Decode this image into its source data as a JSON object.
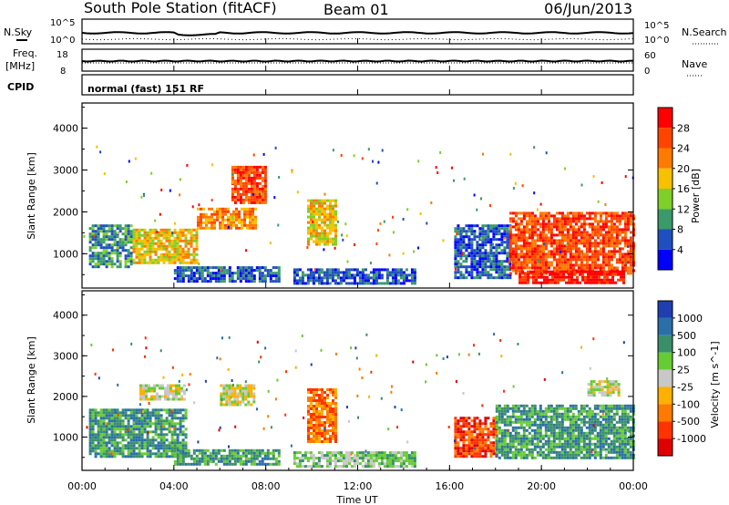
{
  "header": {
    "station": "South Pole Station (fitACF)",
    "beam": "Beam 01",
    "date": "06/Jun/2013"
  },
  "noise_panel": {
    "left_label": "N.Sky",
    "right_label": "N.Search",
    "left_ticks": [
      "10^5",
      "10^0"
    ],
    "right_ticks": [
      "10^5",
      "10^0"
    ]
  },
  "freq_panel": {
    "left_label_1": "Freq.",
    "left_label_2": "[MHz]",
    "left_ticks": [
      "18",
      "8"
    ],
    "right_label": "Nave",
    "right_ticks": [
      "60",
      "0"
    ]
  },
  "cpid": {
    "label": "CPID",
    "value": "normal (fast) 151 RF"
  },
  "axes": {
    "ylabel": "Slant Range [km]",
    "xlabel": "Time UT",
    "x_ticks": [
      "00:00",
      "04:00",
      "08:00",
      "12:00",
      "16:00",
      "20:00",
      "00:00"
    ],
    "y_ticks": [
      "4000",
      "3000",
      "2000",
      "1000"
    ]
  },
  "chart_data": [
    {
      "type": "heatmap",
      "name": "power",
      "x_range_hours": [
        0,
        24
      ],
      "y_range_km": [
        180,
        4600
      ],
      "colorbar": {
        "label": "Power [dB]",
        "ticks": [
          "28",
          "24",
          "20",
          "16",
          "12",
          "8",
          "4"
        ],
        "colors": [
          "#ff0000",
          "#ff4400",
          "#ff7a00",
          "#f7c000",
          "#7fcf2a",
          "#3a9a6a",
          "#1f4fbf",
          "#0000ff"
        ]
      },
      "regions": [
        {
          "t0": 0.3,
          "t1": 2.2,
          "r0": 700,
          "r1": 1700,
          "level": 5
        },
        {
          "t0": 2.2,
          "t1": 5.0,
          "r0": 800,
          "r1": 1600,
          "level": 3
        },
        {
          "t0": 4.0,
          "t1": 8.6,
          "r0": 350,
          "r1": 700,
          "level": 6
        },
        {
          "t0": 5.0,
          "t1": 7.5,
          "r0": 1600,
          "r1": 2100,
          "level": 2
        },
        {
          "t0": 9.2,
          "t1": 14.5,
          "r0": 300,
          "r1": 650,
          "level": 6
        },
        {
          "t0": 9.8,
          "t1": 11.0,
          "r0": 1200,
          "r1": 2300,
          "level": 3
        },
        {
          "t0": 16.2,
          "t1": 18.6,
          "r0": 400,
          "r1": 1700,
          "level": 6
        },
        {
          "t0": 18.6,
          "t1": 24.0,
          "r0": 500,
          "r1": 2000,
          "level": 1
        },
        {
          "t0": 19.0,
          "t1": 23.6,
          "r0": 300,
          "r1": 600,
          "level": 0
        },
        {
          "t0": 6.5,
          "t1": 8.0,
          "r0": 2200,
          "r1": 3100,
          "level": 1
        }
      ]
    },
    {
      "type": "heatmap",
      "name": "velocity",
      "x_range_hours": [
        0,
        24
      ],
      "y_range_km": [
        180,
        4600
      ],
      "colorbar": {
        "label": "Velocity [m s^-1]",
        "ticks": [
          "1000",
          "500",
          "100",
          "25",
          "-25",
          "-100",
          "-500",
          "-1000"
        ],
        "colors": [
          "#1f3fb0",
          "#2a6fa8",
          "#3a8f6a",
          "#66cc33",
          "#c8c8c8",
          "#ffb000",
          "#ff7a00",
          "#ff3300",
          "#e00000"
        ]
      },
      "regions": [
        {
          "t0": 0.3,
          "t1": 4.5,
          "r0": 500,
          "r1": 1700,
          "level": 2
        },
        {
          "t0": 4.0,
          "t1": 8.6,
          "r0": 300,
          "r1": 700,
          "level": 2
        },
        {
          "t0": 2.5,
          "t1": 4.5,
          "r0": 1900,
          "r1": 2300,
          "level": 4
        },
        {
          "t0": 6.0,
          "t1": 7.5,
          "r0": 1800,
          "r1": 2300,
          "level": 4
        },
        {
          "t0": 9.2,
          "t1": 14.5,
          "r0": 300,
          "r1": 650,
          "level": 3
        },
        {
          "t0": 9.8,
          "t1": 11.0,
          "r0": 900,
          "r1": 2200,
          "level": 6
        },
        {
          "t0": 16.2,
          "t1": 18.0,
          "r0": 500,
          "r1": 1500,
          "level": 7
        },
        {
          "t0": 18.0,
          "t1": 24.0,
          "r0": 500,
          "r1": 1800,
          "level": 2
        },
        {
          "t0": 22.0,
          "t1": 23.4,
          "r0": 2000,
          "r1": 2400,
          "level": 4
        }
      ]
    }
  ]
}
